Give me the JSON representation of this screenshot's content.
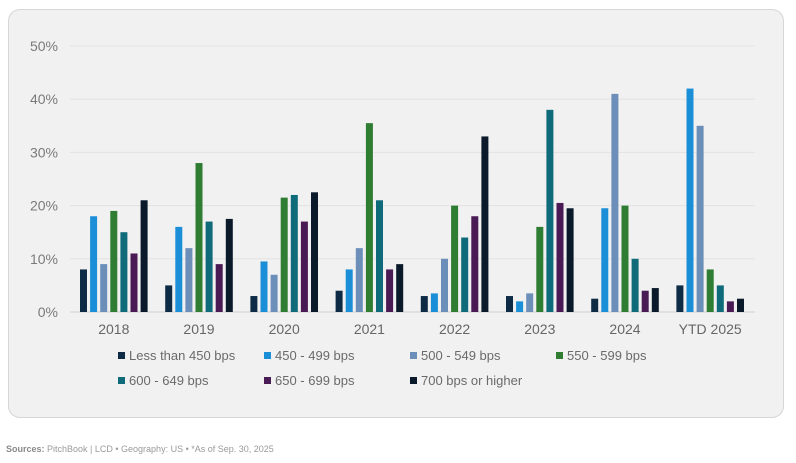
{
  "chart_data": {
    "type": "bar",
    "title": "",
    "xlabel": "",
    "ylabel": "",
    "ylim": [
      0,
      50
    ],
    "y_ticks": [
      0,
      10,
      20,
      30,
      40,
      50
    ],
    "y_tick_labels": [
      "0%",
      "10%",
      "20%",
      "30%",
      "40%",
      "50%"
    ],
    "grid": true,
    "legend_position": "bottom",
    "categories": [
      "2018",
      "2019",
      "2020",
      "2021",
      "2022",
      "2023",
      "2024",
      "YTD 2025"
    ],
    "series": [
      {
        "name": "Less than 450 bps",
        "color": "#0d2b45",
        "values": [
          8,
          5,
          3,
          4,
          3,
          3,
          2.5,
          5
        ]
      },
      {
        "name": "450 - 499 bps",
        "color": "#1a8fd8",
        "values": [
          18,
          16,
          9.5,
          8,
          3.5,
          2,
          19.5,
          42
        ]
      },
      {
        "name": "500 - 549 bps",
        "color": "#6b8fb8",
        "values": [
          9,
          12,
          7,
          12,
          10,
          3.5,
          41,
          35
        ]
      },
      {
        "name": "550 - 599 bps",
        "color": "#2e7d32",
        "values": [
          19,
          28,
          21.5,
          35.5,
          20,
          16,
          20,
          8
        ]
      },
      {
        "name": "600 - 649 bps",
        "color": "#0f6b7a",
        "values": [
          15,
          17,
          22,
          21,
          14,
          38,
          10,
          5
        ]
      },
      {
        "name": "650 - 699 bps",
        "color": "#4a1a55",
        "values": [
          11,
          9,
          17,
          8,
          18,
          20.5,
          4,
          2
        ]
      },
      {
        "name": "700 bps or higher",
        "color": "#0a1a2a",
        "values": [
          21,
          17.5,
          22.5,
          9,
          33,
          19.5,
          4.5,
          2.5
        ]
      }
    ]
  },
  "footer": {
    "sources_label": "Sources:",
    "sources_text": " PitchBook | LCD • Geography: US • *As of Sep. 30, 2025"
  }
}
